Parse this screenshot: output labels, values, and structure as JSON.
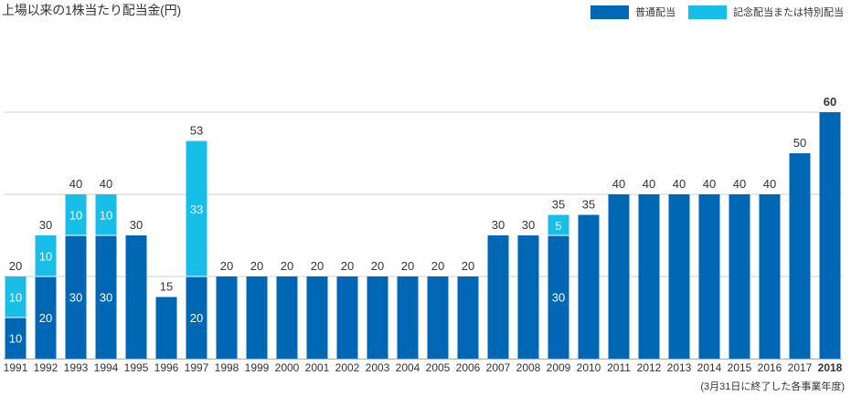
{
  "colors": {
    "regular": "#0067b4",
    "special": "#18bde8",
    "gridline": "#cfcfcf",
    "axis": "#aaaaaa",
    "inner_label": "#ffffff",
    "label": "#333333"
  },
  "chart_data": {
    "type": "bar",
    "stacked": true,
    "title": "上場以来の1株当たり配当金(円)",
    "note": "(3月31日に終了した各事業年度)",
    "legend": [
      "普通配当",
      "記念配当または特別配当"
    ],
    "legend_position": "top-right",
    "ylim": [
      0,
      60
    ],
    "gridlines": [
      0,
      20,
      40,
      60
    ],
    "categories": [
      "1991",
      "1992",
      "1993",
      "1994",
      "1995",
      "1996",
      "1997",
      "1998",
      "1999",
      "2000",
      "2001",
      "2002",
      "2003",
      "2004",
      "2005",
      "2006",
      "2007",
      "2008",
      "2009",
      "2010",
      "2011",
      "2012",
      "2013",
      "2014",
      "2015",
      "2016",
      "2017",
      "2018"
    ],
    "highlight_category": "2018",
    "series": [
      {
        "name": "普通配当",
        "key": "regular",
        "values": [
          10,
          20,
          30,
          30,
          30,
          15,
          20,
          20,
          20,
          20,
          20,
          20,
          20,
          20,
          20,
          20,
          30,
          30,
          30,
          35,
          40,
          40,
          40,
          40,
          40,
          40,
          50,
          60
        ]
      },
      {
        "name": "記念配当または特別配当",
        "key": "special",
        "values": [
          10,
          10,
          10,
          10,
          0,
          0,
          33,
          0,
          0,
          0,
          0,
          0,
          0,
          0,
          0,
          0,
          0,
          0,
          5,
          0,
          0,
          0,
          0,
          0,
          0,
          0,
          0,
          0
        ]
      }
    ],
    "segment_labels": {
      "regular": [
        "10",
        "20",
        "30",
        "30",
        "",
        "",
        "20",
        "",
        "",
        "",
        "",
        "",
        "",
        "",
        "",
        "",
        "",
        "",
        "30",
        "",
        "",
        "",
        "",
        "",
        "",
        "",
        "",
        ""
      ],
      "special": [
        "10",
        "10",
        "10",
        "10",
        "",
        "",
        "33",
        "",
        "",
        "",
        "",
        "",
        "",
        "",
        "",
        "",
        "",
        "",
        "5",
        "",
        "",
        "",
        "",
        "",
        "",
        "",
        "",
        ""
      ]
    },
    "totals": [
      "20",
      "30",
      "40",
      "40",
      "30",
      "15",
      "53",
      "20",
      "20",
      "20",
      "20",
      "20",
      "20",
      "20",
      "20",
      "20",
      "30",
      "30",
      "35",
      "35",
      "40",
      "40",
      "40",
      "40",
      "40",
      "40",
      "50",
      "60"
    ]
  }
}
